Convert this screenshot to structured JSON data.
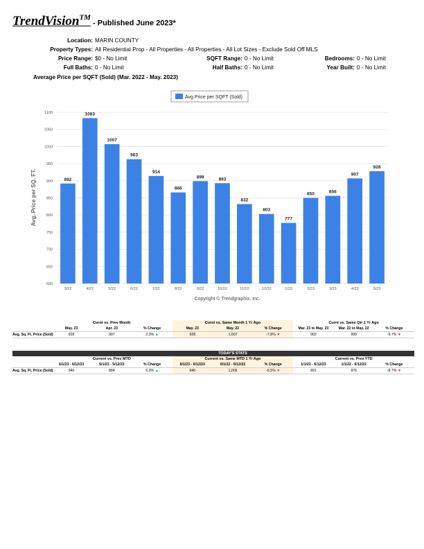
{
  "header": {
    "brand": "TrendVision",
    "tm": "TM",
    "published": " - Published June 2023*"
  },
  "criteria": {
    "location_label": "Location:",
    "location": "MARIN COUNTY",
    "ptype_label": "Property Types:",
    "ptype": "All Residential Prop - All Properties - All Properties - All Lot Sizes - Exclude Sold Off MLS",
    "price_label": "Price Range:",
    "price": "$0 - No Limit",
    "sqft_label": "SQFT Range:",
    "sqft": "0 - No Limit",
    "bed_label": "Bedrooms:",
    "bed": "0 - No Limit",
    "fullbath_label": "Full Baths:",
    "fullbath": "0 - No Limit",
    "halfbath_label": "Half Baths:",
    "halfbath": "0 - No Limit",
    "year_label": "Year Built:",
    "year": "0 - No Limit"
  },
  "subtitle": "Average Price per SQFT (Sold) (Mar. 2022 - May. 2023)",
  "chart_data": {
    "type": "bar",
    "title": "Average Price per SQFT (Sold) (Mar. 2022 - May. 2023)",
    "legend": "Avg Price per SQFT (Sold)",
    "ylabel": "Avg. Price per SQ. FT.",
    "xlabel": "",
    "ylim": [
      600,
      1100
    ],
    "yticks": [
      1100,
      1050,
      1000,
      950,
      900,
      850,
      800,
      750,
      700,
      650,
      600
    ],
    "categories": [
      "3/22",
      "4/22",
      "5/22",
      "6/22",
      "7/22",
      "8/22",
      "9/22",
      "10/22",
      "11/22",
      "12/22",
      "1/23",
      "2/23",
      "3/23",
      "4/23",
      "5/23"
    ],
    "values": [
      892,
      1083,
      1007,
      963,
      914,
      866,
      899,
      893,
      832,
      803,
      777,
      850,
      856,
      907,
      928
    ],
    "color": "#3c82e6",
    "copyright": "Copyright © Trendgraphix, Inc."
  },
  "stats": {
    "monthly": {
      "groups": [
        "Curnt vs. Prev Month",
        "Curnt vs. Same Month 1 Yr Ago",
        "Curnt vs. Same Qtr 1 Yr Ago"
      ],
      "headers": [
        "May. 23",
        "Apr. 23",
        "% Change",
        "May. 23",
        "May. 22",
        "% Change",
        "Mar. 23 to May. 23",
        "Mar. 22 to May. 22",
        "% Change"
      ],
      "row_label": "Avg. Sq. Ft. Price (Sold)",
      "values": [
        "928",
        "907",
        "2.3%",
        "928",
        "1,007",
        "-7.8%",
        "902",
        "999",
        "-9.7%"
      ]
    },
    "today": {
      "banner": "TODAY'S STATS",
      "groups": [
        "Current vs. Prev MTD",
        "Current vs. Same MTD 1 Yr Ago",
        "Current vs. Prev YTD"
      ],
      "headers": [
        "6/1/23 - 6/12/23",
        "5/1/23 - 5/12/23",
        "% Change",
        "6/1/23 - 6/12/23",
        "6/1/22 - 6/12/22",
        "% Change",
        "1/1/23 - 6/12/23",
        "1/1/22 - 6/12/22",
        "% Change"
      ],
      "row_label": "Avg. Sq. Ft. Price (Sold)",
      "values": [
        "940",
        "884",
        "6.3%",
        "940",
        "1,005",
        "-6.5%",
        "891",
        "976",
        "-8.7%"
      ]
    },
    "colors": {
      "up": "#2aa82a",
      "down": "#d42a2a",
      "highlight": "#fff3dd"
    }
  }
}
